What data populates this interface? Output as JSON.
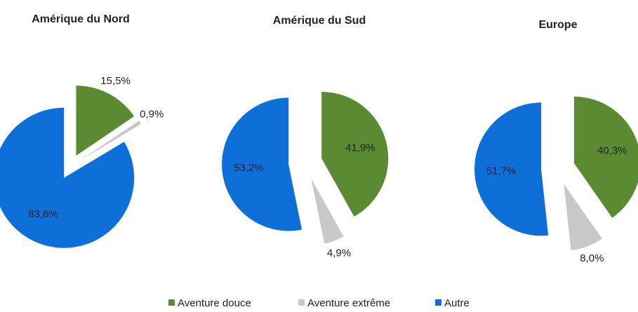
{
  "chart_data": [
    {
      "type": "pie",
      "title": "Amérique du Nord",
      "categories": [
        "Aventure douce",
        "Aventure extrême",
        "Autre"
      ],
      "values": [
        15.5,
        0.9,
        83.6
      ],
      "value_labels": [
        "15,5%",
        "0,9%",
        "83,6%"
      ],
      "colors": [
        "#5a8a32",
        "#c8c8c8",
        "#0f6fd8"
      ]
    },
    {
      "type": "pie",
      "title": "Amérique du Sud",
      "categories": [
        "Aventure douce",
        "Aventure extrême",
        "Autre"
      ],
      "values": [
        41.9,
        4.9,
        53.2
      ],
      "value_labels": [
        "41,9%",
        "4,9%",
        "53,2%"
      ],
      "colors": [
        "#5a8a32",
        "#c8c8c8",
        "#0f6fd8"
      ]
    },
    {
      "type": "pie",
      "title": "Europe",
      "categories": [
        "Aventure douce",
        "Aventure extrême",
        "Autre"
      ],
      "values": [
        40.3,
        8.0,
        51.7
      ],
      "value_labels": [
        "40,3%",
        "8,0%",
        "51,7%"
      ],
      "colors": [
        "#5a8a32",
        "#c8c8c8",
        "#0f6fd8"
      ]
    }
  ]
}
